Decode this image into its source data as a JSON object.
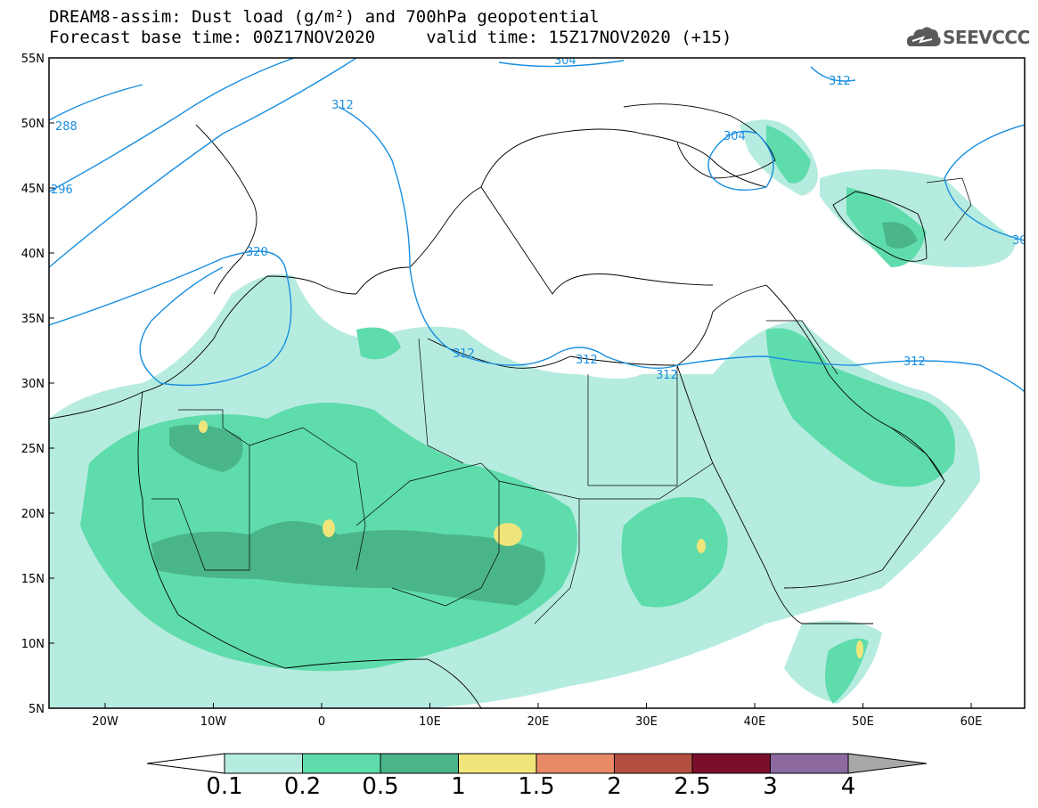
{
  "title_line1": "DREAM8-assim: Dust load (g/m²) and 700hPa geopotential",
  "title_line2": "Forecast base time: 00Z17NOV2020     valid time: 15Z17NOV2020 (+15)",
  "logo_text": "SEEVCCC",
  "lat_labels": [
    "55N",
    "50N",
    "45N",
    "40N",
    "35N",
    "30N",
    "25N",
    "20N",
    "15N",
    "10N",
    "5N"
  ],
  "lon_labels": [
    "20W",
    "10W",
    "0",
    "10E",
    "20E",
    "30E",
    "40E",
    "50E",
    "60E"
  ],
  "contour_labels": [
    "304",
    "312",
    "288",
    "296",
    "312",
    "304",
    "320",
    "312",
    "312",
    "312",
    "312",
    "30"
  ],
  "colorbar": {
    "labels": [
      "0.1",
      "0.2",
      "0.5",
      "1",
      "1.5",
      "2",
      "2.5",
      "3",
      "4"
    ],
    "colors": [
      "#b6ece0",
      "#5fdcac",
      "#4bb58a",
      "#f0e57a",
      "#e98a66",
      "#b34f3e",
      "#7a0f2c",
      "#8c6aa0"
    ]
  },
  "colors": {
    "dust_light": "#b6ece0",
    "dust_mid": "#5fdcac",
    "dust_dark": "#4bb58a",
    "dust_yellow": "#f0e57a",
    "contour": "#1a8fe0"
  }
}
